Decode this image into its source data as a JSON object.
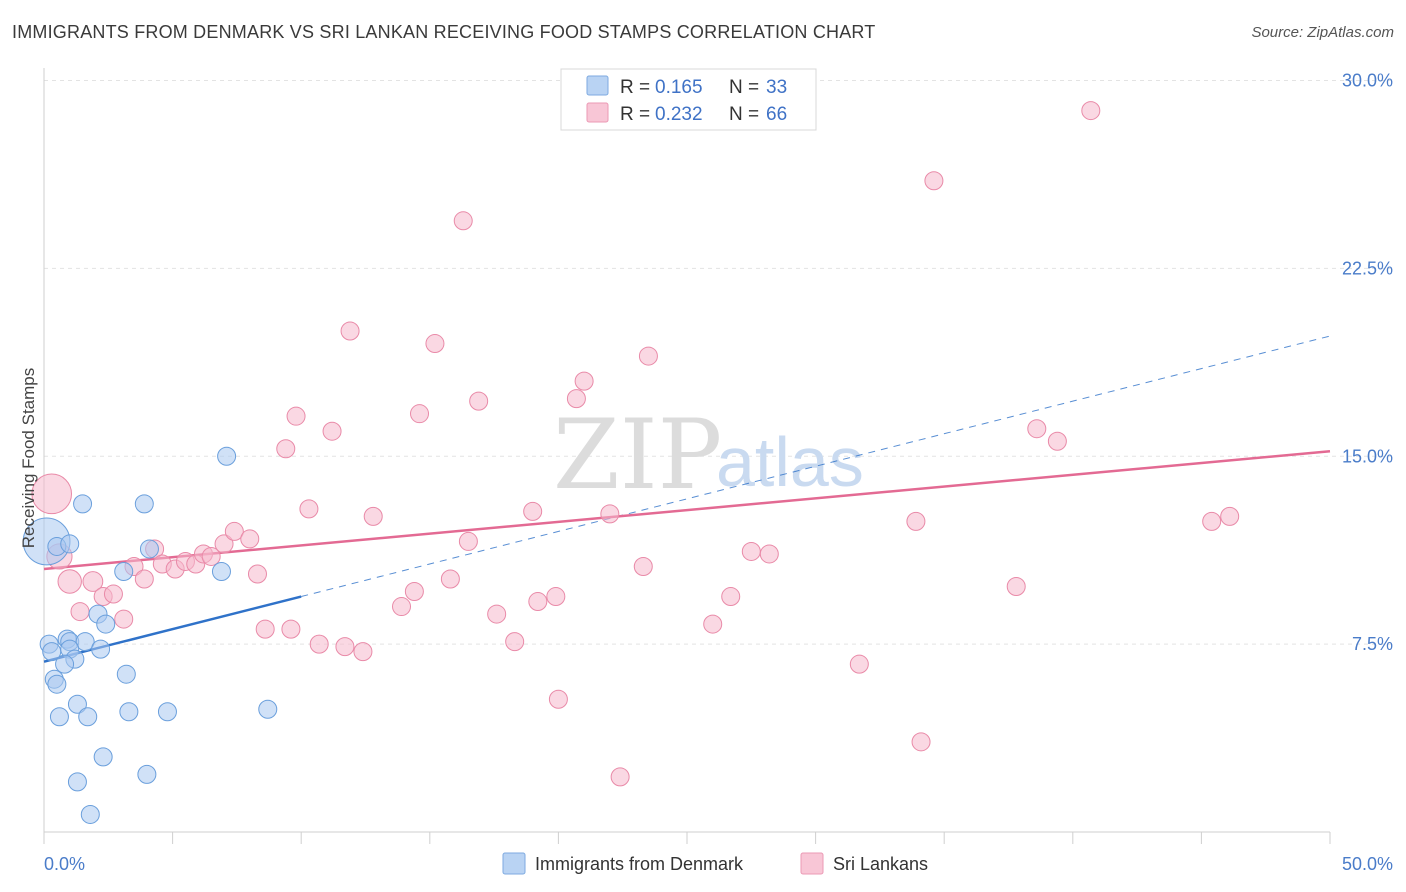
{
  "title": "IMMIGRANTS FROM DENMARK VS SRI LANKAN RECEIVING FOOD STAMPS CORRELATION CHART",
  "source": "Source: ZipAtlas.com",
  "watermark": {
    "zip": "ZIP",
    "atlas": "atlas"
  },
  "legend_box": {
    "rows": [
      {
        "r_label": "R =",
        "r_value": "0.165",
        "n_label": "N =",
        "n_value": "33",
        "color": "#a9c8f0"
      },
      {
        "r_label": "R =",
        "r_value": "0.232",
        "n_label": "N =",
        "n_value": "66",
        "color": "#f6b8cc"
      }
    ]
  },
  "chart_data": {
    "type": "scatter",
    "title": "IMMIGRANTS FROM DENMARK VS SRI LANKAN RECEIVING FOOD STAMPS CORRELATION CHART",
    "xlabel": "",
    "ylabel": "Receiving Food Stamps",
    "xlim": [
      0,
      50
    ],
    "ylim": [
      0,
      30.5
    ],
    "x_tick_labels": [
      "0.0%",
      "50.0%"
    ],
    "y_ticks": [
      {
        "value": 7.5,
        "label": "7.5%"
      },
      {
        "value": 15.0,
        "label": "15.0%"
      },
      {
        "value": 22.5,
        "label": "22.5%"
      },
      {
        "value": 30.0,
        "label": "30.0%"
      }
    ],
    "x_minor_ticks": [
      0,
      5,
      10,
      15,
      20,
      25,
      30,
      35,
      40,
      45,
      50
    ],
    "series": [
      {
        "name": "Immigrants from Denmark",
        "color": "#a9c8f0",
        "stroke": "#6a9fdc",
        "trend_color": "#2f72c9",
        "trend": {
          "x0": 0,
          "y0": 6.8,
          "x1": 10,
          "y1": 9.4,
          "dashed_to_x": 50,
          "dashed_to_y": 19.8
        },
        "points": [
          [
            0.1,
            11.6,
            2.6
          ],
          [
            0.5,
            11.4,
            1.0
          ],
          [
            1.5,
            13.1,
            1.0
          ],
          [
            3.9,
            13.1,
            1.0
          ],
          [
            7.1,
            15.0,
            1.0
          ],
          [
            4.1,
            11.3,
            1.0
          ],
          [
            3.1,
            10.4,
            1.0
          ],
          [
            6.9,
            10.4,
            1.0
          ],
          [
            2.1,
            8.7,
            1.0
          ],
          [
            2.4,
            8.3,
            1.0
          ],
          [
            0.2,
            7.5,
            1.0
          ],
          [
            0.9,
            7.7,
            1.0
          ],
          [
            1.0,
            7.6,
            1.0
          ],
          [
            1.6,
            7.6,
            1.0
          ],
          [
            0.3,
            7.2,
            1.0
          ],
          [
            1.0,
            7.3,
            1.0
          ],
          [
            1.2,
            6.9,
            1.0
          ],
          [
            2.2,
            7.3,
            1.0
          ],
          [
            0.8,
            6.7,
            1.0
          ],
          [
            0.4,
            6.1,
            1.0
          ],
          [
            0.5,
            5.9,
            1.0
          ],
          [
            3.2,
            6.3,
            1.0
          ],
          [
            1.3,
            5.1,
            1.0
          ],
          [
            0.6,
            4.6,
            1.0
          ],
          [
            1.7,
            4.6,
            1.0
          ],
          [
            3.3,
            4.8,
            1.0
          ],
          [
            4.8,
            4.8,
            1.0
          ],
          [
            8.7,
            4.9,
            1.0
          ],
          [
            2.3,
            3.0,
            1.0
          ],
          [
            1.3,
            2.0,
            1.0
          ],
          [
            4.0,
            2.3,
            1.0
          ],
          [
            1.8,
            0.7,
            1.0
          ],
          [
            1.0,
            11.5,
            1.0
          ]
        ]
      },
      {
        "name": "Sri Lankans",
        "color": "#f6b8cc",
        "stroke": "#e98aa8",
        "trend_color": "#e36a93",
        "trend": {
          "x0": 0,
          "y0": 10.5,
          "x1": 50,
          "y1": 15.2
        },
        "points": [
          [
            0.3,
            13.5,
            2.2
          ],
          [
            0.6,
            11.0,
            1.4
          ],
          [
            1.0,
            10.0,
            1.3
          ],
          [
            1.9,
            10.0,
            1.1
          ],
          [
            1.4,
            8.8,
            1.0
          ],
          [
            2.3,
            9.4,
            1.0
          ],
          [
            2.7,
            9.5,
            1.0
          ],
          [
            3.1,
            8.5,
            1.0
          ],
          [
            3.5,
            10.6,
            1.0
          ],
          [
            3.9,
            10.1,
            1.0
          ],
          [
            4.3,
            11.3,
            1.0
          ],
          [
            4.6,
            10.7,
            1.0
          ],
          [
            5.1,
            10.5,
            1.0
          ],
          [
            5.5,
            10.8,
            1.0
          ],
          [
            5.9,
            10.7,
            1.0
          ],
          [
            6.2,
            11.1,
            1.0
          ],
          [
            6.5,
            11.0,
            1.0
          ],
          [
            7.0,
            11.5,
            1.0
          ],
          [
            7.4,
            12.0,
            1.0
          ],
          [
            8.0,
            11.7,
            1.0
          ],
          [
            8.3,
            10.3,
            1.0
          ],
          [
            8.6,
            8.1,
            1.0
          ],
          [
            9.6,
            8.1,
            1.0
          ],
          [
            9.4,
            15.3,
            1.0
          ],
          [
            9.8,
            16.6,
            1.0
          ],
          [
            10.3,
            12.9,
            1.0
          ],
          [
            10.7,
            7.5,
            1.0
          ],
          [
            11.2,
            16.0,
            1.0
          ],
          [
            11.9,
            20.0,
            1.0
          ],
          [
            11.7,
            7.4,
            1.0
          ],
          [
            12.4,
            7.2,
            1.0
          ],
          [
            12.8,
            12.6,
            1.0
          ],
          [
            13.9,
            9.0,
            1.0
          ],
          [
            14.4,
            9.6,
            1.0
          ],
          [
            14.6,
            16.7,
            1.0
          ],
          [
            15.2,
            19.5,
            1.0
          ],
          [
            15.8,
            10.1,
            1.0
          ],
          [
            16.3,
            24.4,
            1.0
          ],
          [
            16.5,
            11.6,
            1.0
          ],
          [
            16.9,
            17.2,
            1.0
          ],
          [
            17.6,
            8.7,
            1.0
          ],
          [
            18.3,
            7.6,
            1.0
          ],
          [
            19.0,
            12.8,
            1.0
          ],
          [
            19.2,
            9.2,
            1.0
          ],
          [
            19.9,
            9.4,
            1.0
          ],
          [
            20.0,
            5.3,
            1.0
          ],
          [
            20.7,
            17.3,
            1.0
          ],
          [
            21.0,
            18.0,
            1.0
          ],
          [
            22.0,
            12.7,
            1.0
          ],
          [
            22.4,
            2.2,
            1.0
          ],
          [
            23.3,
            10.6,
            1.0
          ],
          [
            23.5,
            19.0,
            1.0
          ],
          [
            26.0,
            8.3,
            1.0
          ],
          [
            26.7,
            9.4,
            1.0
          ],
          [
            27.5,
            11.2,
            1.0
          ],
          [
            28.2,
            11.1,
            1.0
          ],
          [
            31.7,
            6.7,
            1.0
          ],
          [
            33.9,
            12.4,
            1.0
          ],
          [
            34.1,
            3.6,
            1.0
          ],
          [
            34.6,
            26.0,
            1.0
          ],
          [
            37.8,
            9.8,
            1.0
          ],
          [
            38.6,
            16.1,
            1.0
          ],
          [
            39.4,
            15.6,
            1.0
          ],
          [
            40.7,
            28.8,
            1.0
          ],
          [
            45.4,
            12.4,
            1.0
          ],
          [
            46.1,
            12.6,
            1.0
          ]
        ]
      }
    ],
    "legend": [
      "Immigrants from Denmark",
      "Sri Lankans"
    ]
  }
}
